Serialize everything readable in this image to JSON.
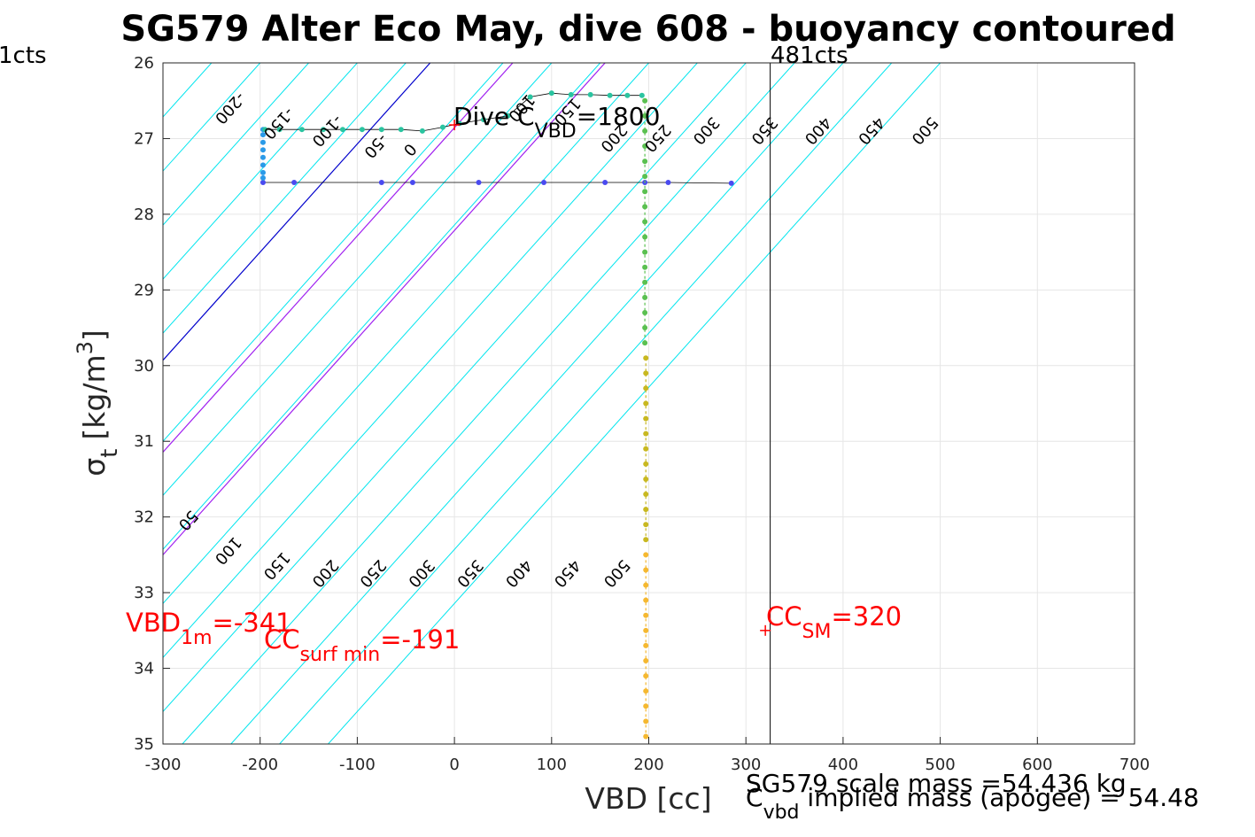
{
  "chart_data": {
    "type": "scatter",
    "title": "SG579 Alter Eco May, dive 608 - buoyancy contoured",
    "xlabel": "VBD [cc]",
    "ylabel_main": "σ",
    "ylabel_sub": "t",
    "ylabel_unit": "[kg/m",
    "ylabel_unit_sup": "3",
    "ylabel_unit_close": "]",
    "xlim": [
      -300,
      700
    ],
    "ylim": [
      26,
      35
    ],
    "y_reversed": true,
    "grid": true,
    "xticks": [
      -300,
      -200,
      -100,
      0,
      100,
      200,
      300,
      400,
      500,
      600,
      700
    ],
    "yticks": [
      26,
      27,
      28,
      29,
      30,
      31,
      32,
      33,
      34,
      35
    ],
    "contour_slope_per_sigma": 70,
    "contours_cyan_top": [
      -350,
      -300,
      -250,
      -200,
      -150,
      -100,
      -50,
      50,
      100,
      150,
      200,
      250,
      300,
      350,
      400,
      450,
      500
    ],
    "contour_zero_top": -25,
    "contours_purple_top": [
      60,
      155
    ],
    "cyan_labels_top": [
      {
        "text": "-200",
        "x": -235,
        "y": 26.55
      },
      {
        "text": "-150",
        "x": -185,
        "y": 26.75
      },
      {
        "text": "-100",
        "x": -135,
        "y": 26.85
      },
      {
        "text": "-50",
        "x": -85,
        "y": 27.05
      },
      {
        "text": "0",
        "x": -50,
        "y": 27.1
      },
      {
        "text": "100",
        "x": 65,
        "y": 26.55
      },
      {
        "text": "150",
        "x": 112,
        "y": 26.6
      },
      {
        "text": "200",
        "x": 160,
        "y": 26.95
      },
      {
        "text": "250",
        "x": 205,
        "y": 26.95
      },
      {
        "text": "300",
        "x": 255,
        "y": 26.85
      },
      {
        "text": "350",
        "x": 315,
        "y": 26.85
      },
      {
        "text": "400",
        "x": 370,
        "y": 26.85
      },
      {
        "text": "450",
        "x": 425,
        "y": 26.85
      },
      {
        "text": "500",
        "x": 480,
        "y": 26.85
      }
    ],
    "cyan_labels_bottom": [
      {
        "text": "50",
        "x": -278,
        "y": 32.0
      },
      {
        "text": "100",
        "x": -237,
        "y": 32.4
      },
      {
        "text": "150",
        "x": -187,
        "y": 32.6
      },
      {
        "text": "200",
        "x": -137,
        "y": 32.7
      },
      {
        "text": "250",
        "x": -88,
        "y": 32.7
      },
      {
        "text": "300",
        "x": -38,
        "y": 32.7
      },
      {
        "text": "350",
        "x": 12,
        "y": 32.7
      },
      {
        "text": "400",
        "x": 62,
        "y": 32.7
      },
      {
        "text": "450",
        "x": 112,
        "y": 32.7
      },
      {
        "text": "500",
        "x": 163,
        "y": 32.7
      }
    ],
    "series": [
      {
        "color": "#4a4af0",
        "points": [
          [
            -197,
            27.58
          ],
          [
            -165,
            27.58
          ],
          [
            -75,
            27.58
          ],
          [
            -43,
            27.58
          ],
          [
            25,
            27.58
          ],
          [
            92,
            27.58
          ],
          [
            155,
            27.58
          ],
          [
            196,
            27.58
          ],
          [
            220,
            27.58
          ],
          [
            285,
            27.59
          ]
        ]
      },
      {
        "color": "#2a9ae8",
        "points": [
          [
            -197,
            26.88
          ],
          [
            -197,
            26.95
          ],
          [
            -197,
            27.05
          ],
          [
            -197,
            27.15
          ],
          [
            -197,
            27.25
          ],
          [
            -197,
            27.35
          ],
          [
            -197,
            27.45
          ],
          [
            -197,
            27.52
          ]
        ]
      },
      {
        "color": "#2ac4a0",
        "points": [
          [
            -195,
            26.88
          ],
          [
            -180,
            26.88
          ],
          [
            -157,
            26.88
          ],
          [
            -135,
            26.88
          ],
          [
            -115,
            26.88
          ],
          [
            -95,
            26.88
          ],
          [
            -75,
            26.88
          ],
          [
            -55,
            26.88
          ],
          [
            -33,
            26.9
          ],
          [
            -12,
            26.85
          ],
          [
            5,
            26.8
          ],
          [
            30,
            26.75
          ],
          [
            55,
            26.7
          ],
          [
            78,
            26.45
          ],
          [
            100,
            26.4
          ],
          [
            120,
            26.42
          ],
          [
            140,
            26.42
          ],
          [
            160,
            26.43
          ],
          [
            178,
            26.43
          ],
          [
            193,
            26.43
          ]
        ]
      },
      {
        "color": "#5ac050",
        "points": [
          [
            196,
            26.5
          ],
          [
            196,
            26.7
          ],
          [
            196,
            26.9
          ],
          [
            196,
            27.1
          ],
          [
            196,
            27.3
          ],
          [
            196,
            27.5
          ],
          [
            196,
            27.7
          ],
          [
            196,
            27.9
          ],
          [
            196,
            28.1
          ],
          [
            196,
            28.3
          ],
          [
            196,
            28.5
          ],
          [
            196,
            28.7
          ],
          [
            196,
            28.9
          ],
          [
            196,
            29.1
          ],
          [
            196,
            29.3
          ],
          [
            196,
            29.5
          ],
          [
            196,
            29.7
          ]
        ]
      },
      {
        "color": "#c8b820",
        "points": [
          [
            197,
            29.9
          ],
          [
            197,
            30.1
          ],
          [
            197,
            30.3
          ],
          [
            197,
            30.5
          ],
          [
            197,
            30.7
          ],
          [
            197,
            30.9
          ],
          [
            197,
            31.1
          ],
          [
            197,
            31.3
          ],
          [
            197,
            31.5
          ],
          [
            197,
            31.7
          ],
          [
            197,
            31.9
          ],
          [
            197,
            32.1
          ],
          [
            197,
            32.3
          ]
        ]
      },
      {
        "color": "#f5b830",
        "points": [
          [
            197,
            32.5
          ],
          [
            197,
            32.7
          ],
          [
            197,
            32.9
          ],
          [
            197,
            33.1
          ],
          [
            197,
            33.3
          ],
          [
            197,
            33.5
          ],
          [
            197,
            33.7
          ],
          [
            197,
            33.9
          ],
          [
            197,
            34.1
          ],
          [
            197,
            34.3
          ],
          [
            197,
            34.5
          ],
          [
            197,
            34.7
          ],
          [
            197,
            34.9
          ]
        ]
      }
    ],
    "vertical_line_x": 325,
    "plus_markers": [
      {
        "x": 0,
        "y": 26.82,
        "color": "#ff0000"
      },
      {
        "x": 320,
        "y": 33.5,
        "color": "#ff0000"
      }
    ]
  },
  "annotations": {
    "left_cts": "1cts",
    "right_cts": "481cts",
    "dive_c_main": "Dive C",
    "dive_c_sub": "VBD",
    "dive_c_val": "=1800",
    "vbd1m_main": "VBD",
    "vbd1m_sub": "1m",
    "vbd1m_val": "=-341",
    "ccsurf_main": "CC",
    "ccsurf_sub": "surf min",
    "ccsurf_val": "=-191",
    "ccsm_main": "CC",
    "ccsm_sub": "SM",
    "ccsm_val": "=320",
    "scale_mass": "SG579 scale mass =54.436 kg",
    "cvbd_main": "C",
    "cvbd_sub": "vbd",
    "cvbd_rest": " implied mass (apogee) = 54.48"
  },
  "colors": {
    "cyan": "#00e5ee",
    "blue_zero": "#0000cc",
    "purple": "#a020f0",
    "grid": "#e6e6e6",
    "red": "#ff0000"
  }
}
